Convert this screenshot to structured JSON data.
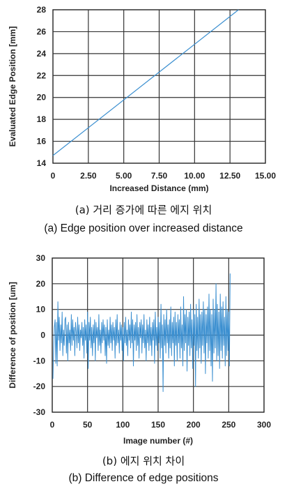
{
  "chart_data": [
    {
      "type": "line",
      "ylabel": "Evaluated Edge Position [mm]",
      "xlabel": "Increased Distance (mm)",
      "xlim": [
        0,
        15
      ],
      "ylim": [
        14,
        28
      ],
      "xticks": [
        0,
        2.5,
        5,
        7.5,
        10,
        12.5,
        15
      ],
      "xtick_labels": [
        "0",
        "2.50",
        "5.00",
        "7.50",
        "10.00",
        "12.50",
        "15.00"
      ],
      "yticks": [
        14,
        16,
        18,
        20,
        22,
        24,
        26,
        28
      ],
      "ytick_labels": [
        "14",
        "16",
        "18",
        "20",
        "22",
        "24",
        "26",
        "28"
      ],
      "grid": true,
      "series": [
        {
          "color": "#3b8fd0",
          "x": [
            0,
            13.1
          ],
          "y": [
            14.7,
            28
          ]
        }
      ],
      "caption_ko": "(a) 거리 증가에 따른 에지 위치",
      "caption_en": "(a) Edge position over increased distance"
    },
    {
      "type": "line",
      "ylabel": "Difference of position [um]",
      "xlabel": "Image number (#)",
      "xlim": [
        0,
        300
      ],
      "ylim": [
        -30,
        30
      ],
      "xticks": [
        0,
        50,
        100,
        150,
        200,
        250,
        300
      ],
      "xtick_labels": [
        "0",
        "50",
        "100",
        "150",
        "200",
        "250",
        "300"
      ],
      "yticks": [
        -30,
        -20,
        -10,
        0,
        10,
        20,
        30
      ],
      "ytick_labels": [
        "-30",
        "-20",
        "-10",
        "0",
        "10",
        "20",
        "30"
      ],
      "grid": true,
      "series": [
        {
          "color": "#3b8fd0",
          "x_start": 1,
          "x_step": 1,
          "y": [
            -17,
            -5,
            3,
            6,
            -11,
            5,
            -12,
            13,
            -2,
            7,
            -6,
            4,
            -3,
            9,
            -8,
            2,
            -4,
            6,
            7,
            -7,
            4,
            -10,
            5,
            -3,
            2,
            -6,
            8,
            -4,
            6,
            -2,
            3,
            -8,
            5,
            1,
            -5,
            7,
            -3,
            4,
            -6,
            2,
            -1,
            5,
            -4,
            3,
            -9,
            6,
            -2,
            4,
            -7,
            9,
            -13,
            5,
            -2,
            7,
            -5,
            3,
            -8,
            4,
            -3,
            6,
            -10,
            5,
            -1,
            3,
            -6,
            8,
            -4,
            2,
            -7,
            5,
            -3,
            6,
            -2,
            4,
            -8,
            3,
            -11,
            6,
            -4,
            2,
            -5,
            7,
            -3,
            4,
            -6,
            5,
            -2,
            3,
            -9,
            6,
            -4,
            8,
            -3,
            2,
            -7,
            5,
            -2,
            4,
            -6,
            3,
            -10,
            5,
            -3,
            7,
            -4,
            2,
            -8,
            6,
            -2,
            4,
            -5,
            9,
            -3,
            6,
            -12,
            4,
            -2,
            5,
            -6,
            8,
            -4,
            3,
            -9,
            5,
            -1,
            6,
            -7,
            4,
            -3,
            8,
            -5,
            2,
            -10,
            6,
            -3,
            4,
            -6,
            7,
            -4,
            3,
            -8,
            5,
            -2,
            6,
            -11,
            9,
            -4,
            3,
            -6,
            7,
            -3,
            5,
            -9,
            12,
            -5,
            4,
            -22,
            8,
            -4,
            6,
            -7,
            10,
            -3,
            4,
            -9,
            6,
            -5,
            11,
            -8,
            5,
            -3,
            7,
            -12,
            9,
            -4,
            5,
            -10,
            8,
            -3,
            6,
            -9,
            11,
            -5,
            4,
            -12,
            15,
            -6,
            8,
            -3,
            10,
            -14,
            7,
            -4,
            9,
            -8,
            12,
            -5,
            6,
            -13,
            10,
            -4,
            8,
            -20,
            12,
            -6,
            7,
            -9,
            14,
            -5,
            8,
            -11,
            9,
            -4,
            13,
            -7,
            10,
            -15,
            8,
            -3,
            11,
            -9,
            16,
            -6,
            10,
            -12,
            8,
            -18,
            14,
            -7,
            10,
            -5,
            20,
            -10,
            12,
            -8,
            9,
            -13,
            16,
            -6,
            11,
            -9,
            13,
            -4,
            7,
            -12,
            15,
            -8,
            10,
            -6,
            9,
            -12,
            24
          ]
        }
      ],
      "caption_ko": "(b) 에지 위치 차이",
      "caption_en": "(b) Difference of edge positions"
    }
  ]
}
